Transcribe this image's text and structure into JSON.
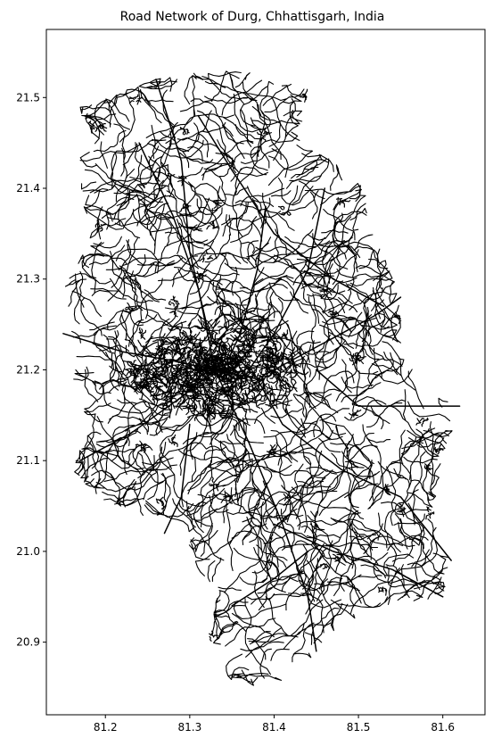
{
  "chart_data": {
    "type": "map",
    "title": "Road Network of Durg, Chhattisgarh, India",
    "xlabel": "",
    "ylabel": "",
    "xlim": [
      81.13,
      81.65
    ],
    "ylim": [
      20.82,
      21.575
    ],
    "xticks": [
      {
        "value": 81.2,
        "label": "81.2"
      },
      {
        "value": 81.3,
        "label": "81.3"
      },
      {
        "value": 81.4,
        "label": "81.4"
      },
      {
        "value": 81.5,
        "label": "81.5"
      },
      {
        "value": 81.6,
        "label": "81.6"
      }
    ],
    "yticks": [
      {
        "value": 20.9,
        "label": "20.9"
      },
      {
        "value": 21.0,
        "label": "21.0"
      },
      {
        "value": 21.1,
        "label": "21.1"
      },
      {
        "value": 21.2,
        "label": "21.2"
      },
      {
        "value": 21.3,
        "label": "21.3"
      },
      {
        "value": 21.4,
        "label": "21.4"
      },
      {
        "value": 21.5,
        "label": "21.5"
      }
    ],
    "grid": false,
    "line_color": "#000000",
    "background_color": "#ffffff",
    "dense_area_center": [
      81.33,
      21.2
    ],
    "region_outline": [
      [
        81.17,
        21.49
      ],
      [
        81.23,
        21.51
      ],
      [
        81.26,
        21.52
      ],
      [
        81.32,
        21.53
      ],
      [
        81.37,
        21.53
      ],
      [
        81.44,
        21.51
      ],
      [
        81.43,
        21.45
      ],
      [
        81.47,
        21.43
      ],
      [
        81.51,
        21.4
      ],
      [
        81.51,
        21.36
      ],
      [
        81.53,
        21.33
      ],
      [
        81.55,
        21.28
      ],
      [
        81.55,
        21.22
      ],
      [
        81.58,
        21.18
      ],
      [
        81.62,
        21.16
      ],
      [
        81.6,
        21.1
      ],
      [
        81.59,
        21.04
      ],
      [
        81.61,
        20.99
      ],
      [
        81.6,
        20.95
      ],
      [
        81.53,
        20.94
      ],
      [
        81.48,
        20.92
      ],
      [
        81.45,
        20.89
      ],
      [
        81.43,
        20.86
      ],
      [
        81.36,
        20.85
      ],
      [
        81.32,
        20.88
      ],
      [
        81.33,
        20.94
      ],
      [
        81.31,
        20.98
      ],
      [
        81.29,
        21.03
      ],
      [
        81.24,
        21.04
      ],
      [
        81.19,
        21.06
      ],
      [
        81.16,
        21.09
      ],
      [
        81.18,
        21.14
      ],
      [
        81.16,
        21.19
      ],
      [
        81.16,
        21.24
      ],
      [
        81.15,
        21.29
      ],
      [
        81.18,
        21.34
      ],
      [
        81.17,
        21.4
      ],
      [
        81.17,
        21.45
      ]
    ],
    "main_roads": [
      [
        [
          81.15,
          21.24
        ],
        [
          81.22,
          21.22
        ],
        [
          81.28,
          21.21
        ],
        [
          81.33,
          21.2
        ],
        [
          81.38,
          21.19
        ],
        [
          81.46,
          21.23
        ],
        [
          81.52,
          21.26
        ],
        [
          81.55,
          21.28
        ]
      ],
      [
        [
          81.24,
          21.45
        ],
        [
          81.28,
          21.37
        ],
        [
          81.31,
          21.29
        ],
        [
          81.33,
          21.2
        ],
        [
          81.37,
          21.12
        ],
        [
          81.41,
          21.03
        ],
        [
          81.44,
          20.95
        ],
        [
          81.45,
          20.89
        ]
      ],
      [
        [
          81.26,
          21.52
        ],
        [
          81.29,
          21.43
        ],
        [
          81.3,
          21.33
        ],
        [
          81.32,
          21.25
        ]
      ],
      [
        [
          81.38,
          21.19
        ],
        [
          81.41,
          21.14
        ],
        [
          81.48,
          21.09
        ],
        [
          81.55,
          21.06
        ],
        [
          81.61,
          20.99
        ]
      ],
      [
        [
          81.17,
          21.1
        ],
        [
          81.23,
          21.13
        ],
        [
          81.29,
          21.17
        ],
        [
          81.33,
          21.2
        ]
      ],
      [
        [
          81.39,
          21.38
        ],
        [
          81.38,
          21.31
        ],
        [
          81.36,
          21.24
        ],
        [
          81.34,
          21.2
        ]
      ],
      [
        [
          81.46,
          21.4
        ],
        [
          81.44,
          21.31
        ],
        [
          81.4,
          21.24
        ],
        [
          81.37,
          21.2
        ]
      ],
      [
        [
          81.31,
          21.48
        ],
        [
          81.35,
          21.42
        ],
        [
          81.4,
          21.35
        ],
        [
          81.47,
          21.3
        ],
        [
          81.53,
          21.27
        ]
      ],
      [
        [
          81.3,
          21.14
        ],
        [
          81.29,
          21.06
        ],
        [
          81.27,
          21.02
        ]
      ],
      [
        [
          81.45,
          21.2
        ],
        [
          81.5,
          21.16
        ],
        [
          81.57,
          21.16
        ],
        [
          81.62,
          21.16
        ]
      ],
      [
        [
          81.4,
          21.03
        ],
        [
          81.47,
          21.0
        ],
        [
          81.54,
          20.98
        ],
        [
          81.6,
          20.95
        ]
      ],
      [
        [
          81.35,
          20.94
        ],
        [
          81.4,
          20.97
        ],
        [
          81.44,
          21.0
        ]
      ]
    ]
  }
}
